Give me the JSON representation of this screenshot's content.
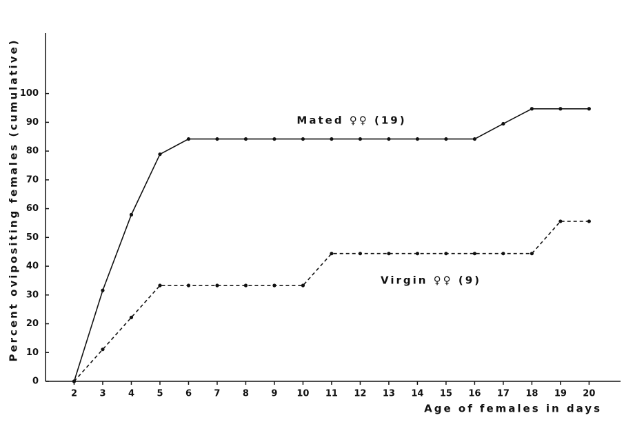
{
  "chart_data": {
    "type": "line",
    "y_label": "Percent ovipositing females (cumulative)",
    "x_label": "Age of females in days",
    "x": [
      2,
      3,
      4,
      5,
      6,
      7,
      8,
      9,
      10,
      11,
      12,
      13,
      14,
      15,
      16,
      17,
      18,
      19,
      20
    ],
    "series": [
      {
        "name": "Mated ♀♀ (19)",
        "color": "#111111",
        "line_style": "solid",
        "values": [
          0,
          31.6,
          57.9,
          78.9,
          84.2,
          84.2,
          84.2,
          84.2,
          84.2,
          84.2,
          84.2,
          84.2,
          84.2,
          84.2,
          84.2,
          89.5,
          94.7,
          94.7,
          94.7
        ]
      },
      {
        "name": "Virgin ♀♀ (9)",
        "color": "#111111",
        "line_style": "dashed",
        "values": [
          0,
          11.1,
          22.2,
          33.3,
          33.3,
          33.3,
          33.3,
          33.3,
          33.3,
          44.4,
          44.4,
          44.4,
          44.4,
          44.4,
          44.4,
          44.4,
          44.4,
          55.6,
          55.6
        ]
      }
    ],
    "xlim": [
      1,
      21.1
    ],
    "ylim": [
      0,
      121
    ],
    "xticks": [
      2,
      3,
      4,
      5,
      6,
      7,
      8,
      9,
      10,
      11,
      12,
      13,
      14,
      15,
      16,
      17,
      18,
      19,
      20
    ],
    "yticks": [
      0,
      10,
      20,
      30,
      40,
      50,
      60,
      70,
      80,
      90,
      100
    ]
  }
}
